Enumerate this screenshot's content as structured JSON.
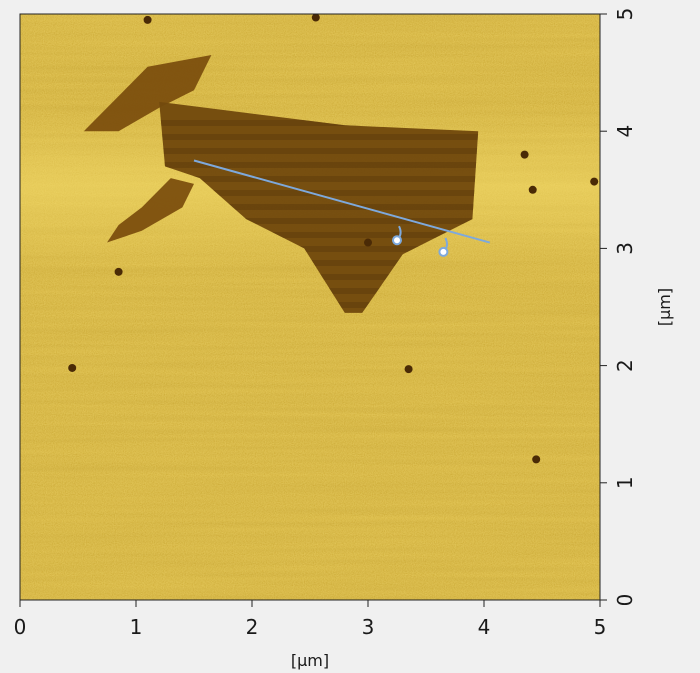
{
  "image": {
    "x_axis_label": "[µm]",
    "y_axis_label": "[µm]",
    "x_ticks": [
      "0",
      "1",
      "2",
      "3",
      "4",
      "5"
    ],
    "y_ticks": [
      "0",
      "1",
      "2",
      "3",
      "4",
      "5"
    ],
    "x_range": [
      0,
      5
    ],
    "y_range": [
      0,
      5
    ],
    "colormap": [
      "#5c3a0c",
      "#7a5010",
      "#a07010",
      "#c49a1a",
      "#dcb83a",
      "#f6e07a"
    ],
    "background_color": "#f0f0f0",
    "profile_line": {
      "color": "#7ea9dc",
      "start": [
        1.5,
        3.75
      ],
      "end": [
        4.05,
        3.05
      ],
      "markers": [
        [
          3.25,
          3.07
        ],
        [
          3.65,
          2.97
        ]
      ]
    },
    "flake_polygon": [
      [
        1.2,
        4.25
      ],
      [
        2.8,
        4.05
      ],
      [
        3.95,
        4.0
      ],
      [
        3.9,
        3.25
      ],
      [
        3.3,
        2.95
      ],
      [
        2.95,
        2.45
      ],
      [
        2.8,
        2.45
      ],
      [
        2.45,
        3.0
      ],
      [
        1.95,
        3.25
      ],
      [
        1.55,
        3.6
      ],
      [
        1.25,
        3.7
      ]
    ],
    "flake_upper_polygon": [
      [
        0.55,
        4.0
      ],
      [
        0.9,
        4.35
      ],
      [
        1.1,
        4.55
      ],
      [
        1.65,
        4.65
      ],
      [
        1.5,
        4.35
      ],
      [
        1.2,
        4.2
      ],
      [
        0.85,
        4.0
      ]
    ],
    "flake_left_polygon": [
      [
        0.75,
        3.05
      ],
      [
        1.05,
        3.15
      ],
      [
        1.4,
        3.35
      ],
      [
        1.5,
        3.55
      ],
      [
        1.3,
        3.6
      ],
      [
        1.05,
        3.35
      ],
      [
        0.85,
        3.2
      ]
    ],
    "defects": [
      [
        0.45,
        1.98
      ],
      [
        3.35,
        1.97
      ],
      [
        4.45,
        1.2
      ],
      [
        4.35,
        3.8
      ],
      [
        4.42,
        3.5
      ],
      [
        4.95,
        3.57
      ],
      [
        2.55,
        4.97
      ],
      [
        3.0,
        3.05
      ],
      [
        1.1,
        4.95
      ],
      [
        0.85,
        2.8
      ]
    ]
  }
}
